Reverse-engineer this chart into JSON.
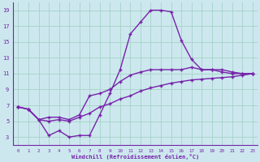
{
  "xlabel": "Windchill (Refroidissement éolien,°C)",
  "background_color": "#cce8ee",
  "grid_color": "#aad4cc",
  "line_color": "#7722aa",
  "xlim": [
    -0.5,
    23.5
  ],
  "ylim": [
    2,
    20
  ],
  "xticks": [
    0,
    1,
    2,
    3,
    4,
    5,
    6,
    7,
    8,
    9,
    10,
    11,
    12,
    13,
    14,
    15,
    16,
    17,
    18,
    19,
    20,
    21,
    22,
    23
  ],
  "yticks": [
    3,
    5,
    7,
    9,
    11,
    13,
    15,
    17,
    19
  ],
  "line1_x": [
    0,
    1,
    2,
    3,
    4,
    5,
    6,
    7,
    8,
    9,
    10,
    11,
    12,
    13,
    14,
    15,
    16,
    17,
    18,
    19,
    20,
    21,
    22,
    23
  ],
  "line1_y": [
    6.8,
    6.5,
    5.2,
    3.2,
    3.8,
    3.0,
    3.2,
    3.2,
    5.8,
    8.5,
    11.5,
    16.0,
    17.5,
    19.0,
    19.0,
    18.8,
    15.2,
    12.8,
    11.5,
    11.5,
    11.2,
    11.0,
    11.0,
    11.0
  ],
  "line2_x": [
    0,
    1,
    2,
    3,
    4,
    5,
    6,
    7,
    8,
    9,
    10,
    11,
    12,
    13,
    14,
    15,
    16,
    17,
    18,
    19,
    20,
    21,
    22,
    23
  ],
  "line2_y": [
    6.8,
    6.5,
    5.2,
    5.5,
    5.5,
    5.2,
    5.8,
    8.2,
    8.5,
    9.0,
    10.0,
    10.8,
    11.2,
    11.5,
    11.5,
    11.5,
    11.5,
    11.8,
    11.5,
    11.5,
    11.5,
    11.2,
    11.0,
    11.0
  ],
  "line3_x": [
    0,
    1,
    2,
    3,
    4,
    5,
    6,
    7,
    8,
    9,
    10,
    11,
    12,
    13,
    14,
    15,
    16,
    17,
    18,
    19,
    20,
    21,
    22,
    23
  ],
  "line3_y": [
    6.8,
    6.5,
    5.2,
    5.0,
    5.2,
    5.0,
    5.5,
    6.0,
    6.8,
    7.2,
    7.8,
    8.2,
    8.8,
    9.2,
    9.5,
    9.8,
    10.0,
    10.2,
    10.3,
    10.4,
    10.5,
    10.6,
    10.8,
    11.0
  ]
}
